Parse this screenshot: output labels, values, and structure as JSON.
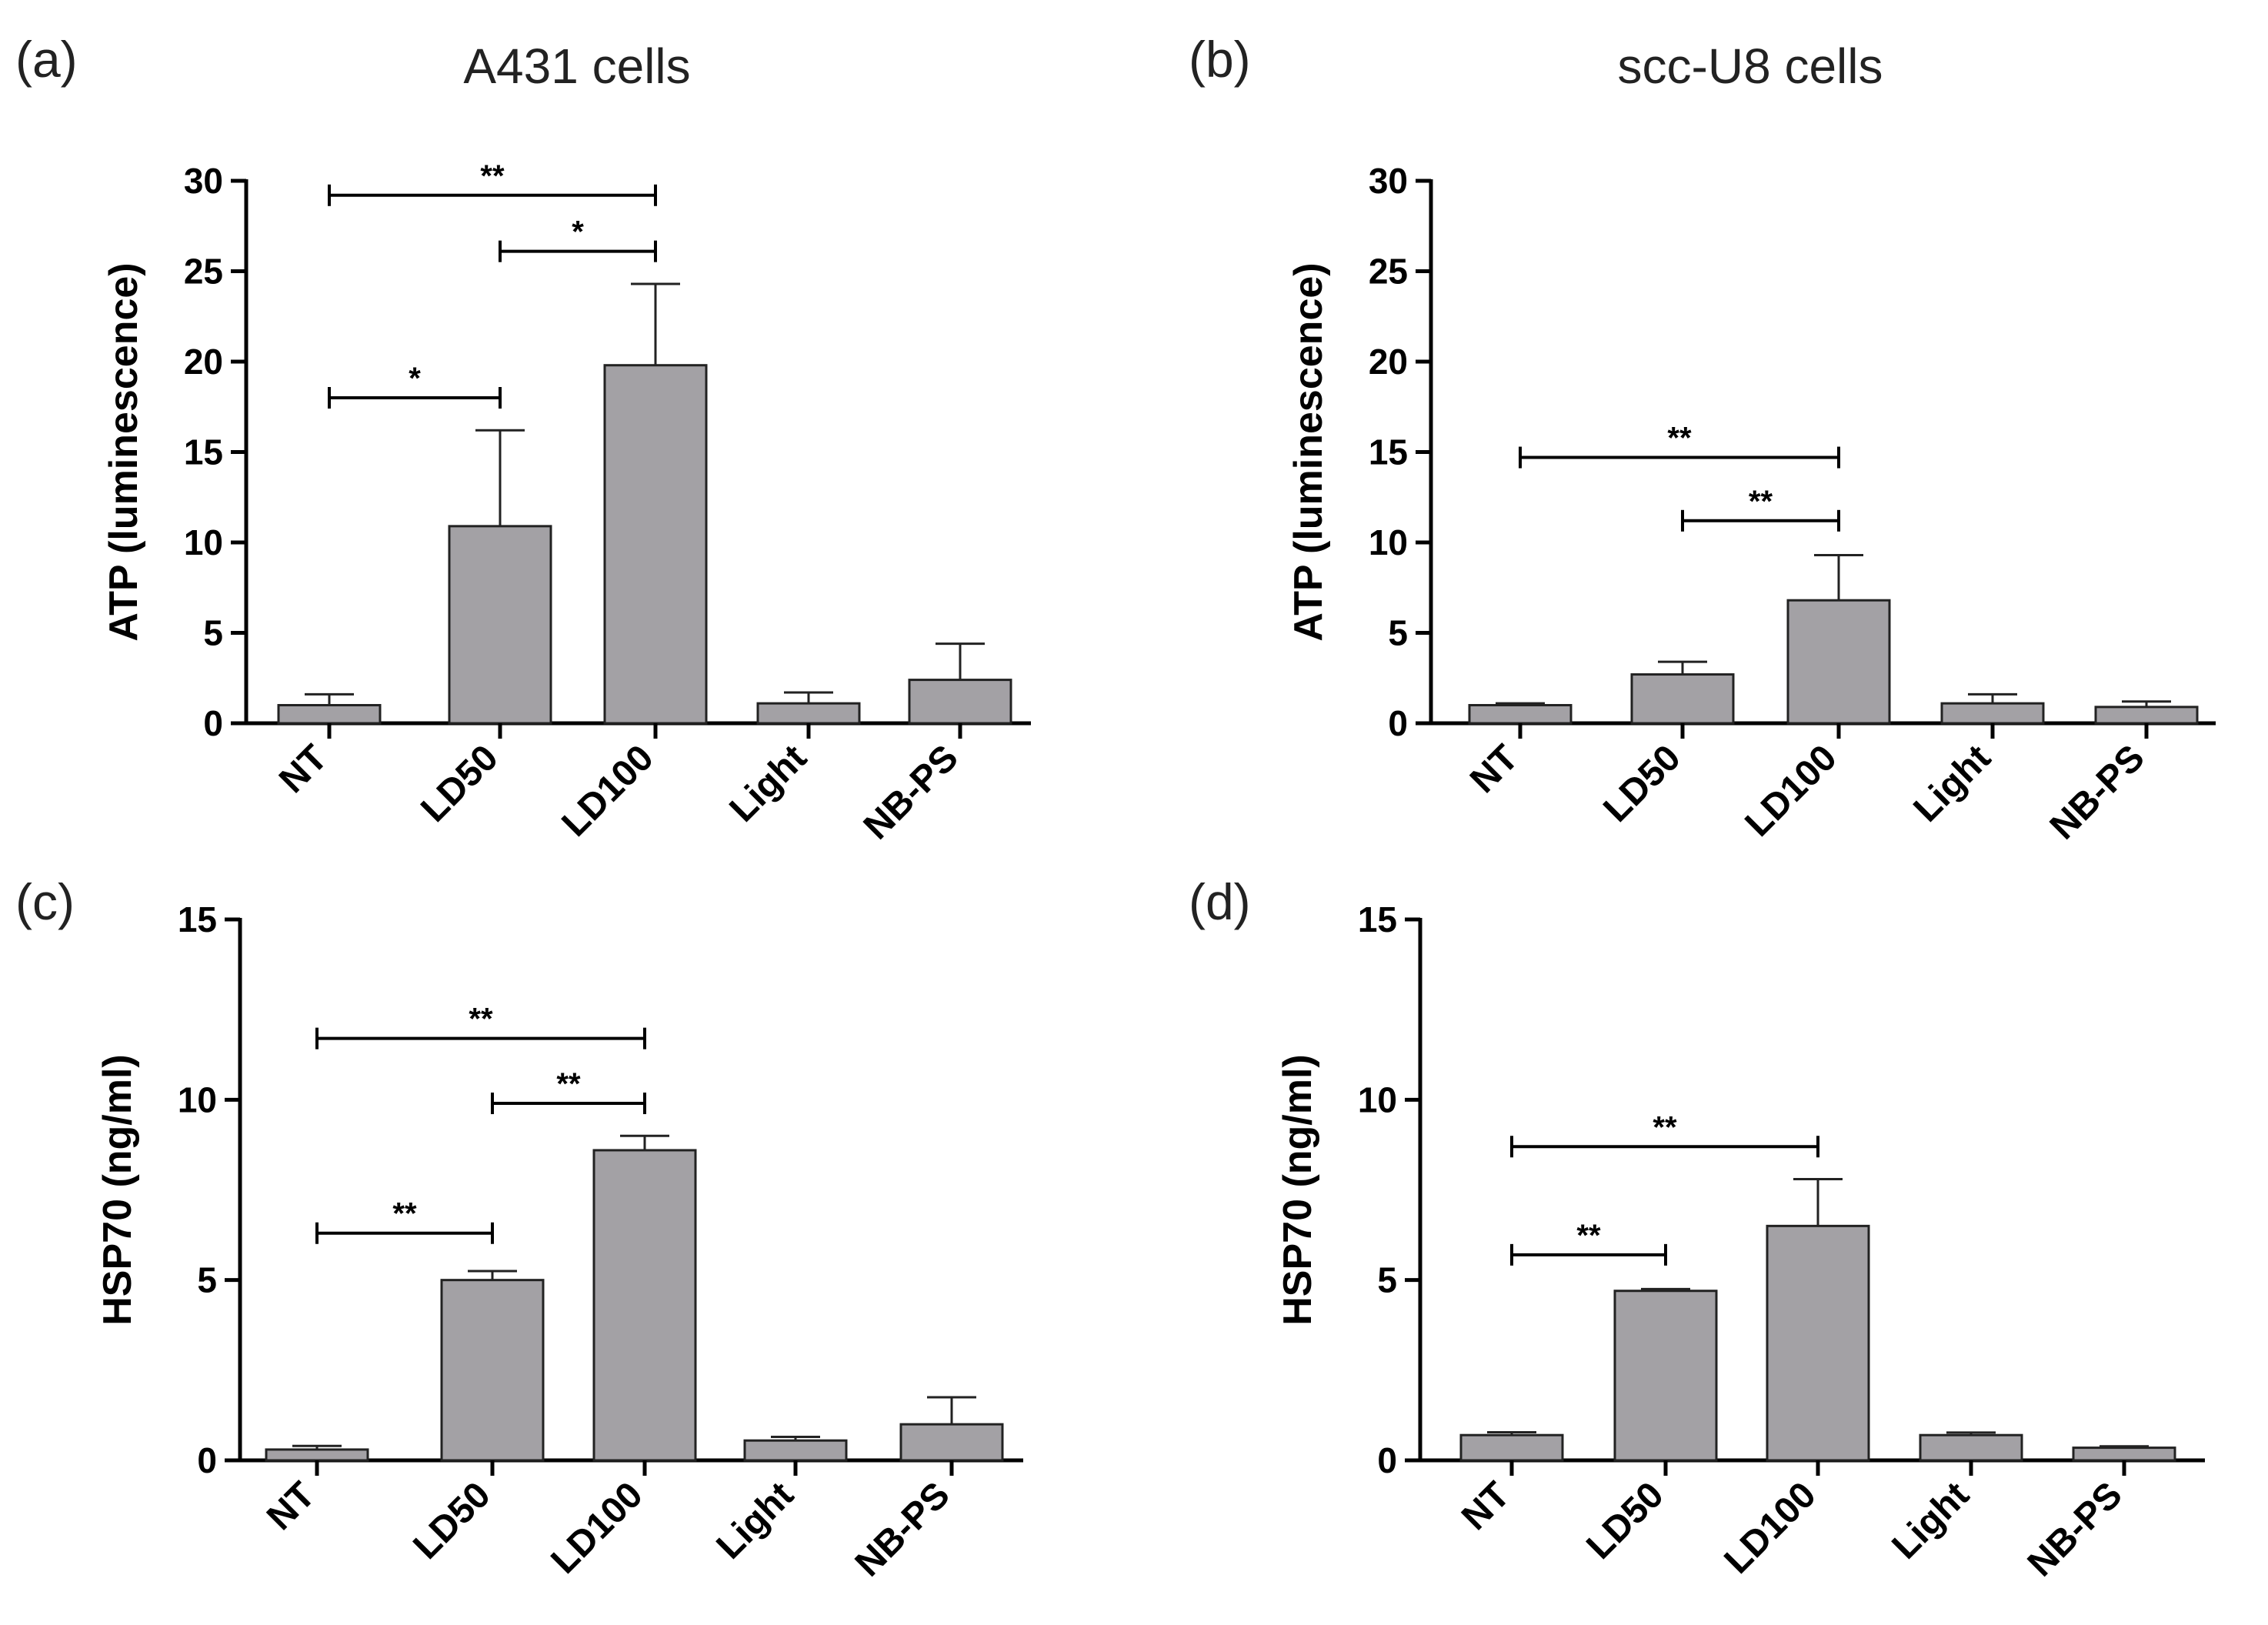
{
  "column_titles": [
    "A431 cells",
    "scc-U8 cells"
  ],
  "chart_data": [
    {
      "panel": "(a)",
      "type": "bar",
      "title": "A431 cells",
      "categories": [
        "NT",
        "LD50",
        "LD100",
        "Light",
        "NB-PS"
      ],
      "values": [
        1.0,
        10.9,
        19.8,
        1.1,
        2.4
      ],
      "errors": [
        0.6,
        5.3,
        4.5,
        0.6,
        2.0
      ],
      "xlabel": "",
      "ylabel": "ATP (luminescence)",
      "ylim": [
        0,
        30
      ],
      "yticks": [
        0,
        5,
        10,
        15,
        20,
        25,
        30
      ],
      "bar_color": "#a3a1a5",
      "significance": [
        {
          "from": "NT",
          "to": "LD100",
          "label": "**",
          "y": 29.2
        },
        {
          "from": "LD50",
          "to": "LD100",
          "label": "*",
          "y": 26.1
        },
        {
          "from": "NT",
          "to": "LD50",
          "label": "*",
          "y": 18.0
        }
      ]
    },
    {
      "panel": "(b)",
      "type": "bar",
      "title": "scc-U8 cells",
      "categories": [
        "NT",
        "LD50",
        "LD100",
        "Light",
        "NB-PS"
      ],
      "values": [
        1.0,
        2.7,
        6.8,
        1.1,
        0.9
      ],
      "errors": [
        0.1,
        0.7,
        2.5,
        0.5,
        0.3
      ],
      "xlabel": "",
      "ylabel": "ATP (luminescence)",
      "ylim": [
        0,
        30
      ],
      "yticks": [
        0,
        5,
        10,
        15,
        20,
        25,
        30
      ],
      "bar_color": "#a3a1a5",
      "significance": [
        {
          "from": "NT",
          "to": "LD100",
          "label": "**",
          "y": 14.7
        },
        {
          "from": "LD50",
          "to": "LD100",
          "label": "**",
          "y": 11.2
        }
      ]
    },
    {
      "panel": "(c)",
      "type": "bar",
      "title": "",
      "categories": [
        "NT",
        "LD50",
        "LD100",
        "Light",
        "NB-PS"
      ],
      "values": [
        0.3,
        5.0,
        8.6,
        0.55,
        1.0
      ],
      "errors": [
        0.1,
        0.25,
        0.4,
        0.1,
        0.75
      ],
      "xlabel": "",
      "ylabel": "HSP70 (ng/ml)",
      "ylim": [
        0,
        15
      ],
      "yticks": [
        0,
        5,
        10,
        15
      ],
      "bar_color": "#a3a1a5",
      "significance": [
        {
          "from": "NT",
          "to": "LD100",
          "label": "**",
          "y": 11.7
        },
        {
          "from": "LD50",
          "to": "LD100",
          "label": "**",
          "y": 9.9
        },
        {
          "from": "NT",
          "to": "LD50",
          "label": "**",
          "y": 6.3
        }
      ]
    },
    {
      "panel": "(d)",
      "type": "bar",
      "title": "",
      "categories": [
        "NT",
        "LD50",
        "LD100",
        "Light",
        "NB-PS"
      ],
      "values": [
        0.7,
        4.7,
        6.5,
        0.7,
        0.35
      ],
      "errors": [
        0.08,
        0.05,
        1.3,
        0.07,
        0.04
      ],
      "xlabel": "",
      "ylabel": "HSP70 (ng/ml)",
      "ylim": [
        0,
        15
      ],
      "yticks": [
        0,
        5,
        10,
        15
      ],
      "bar_color": "#a3a1a5",
      "significance": [
        {
          "from": "NT",
          "to": "LD100",
          "label": "**",
          "y": 8.7
        },
        {
          "from": "NT",
          "to": "LD50",
          "label": "**",
          "y": 5.7
        }
      ]
    }
  ]
}
